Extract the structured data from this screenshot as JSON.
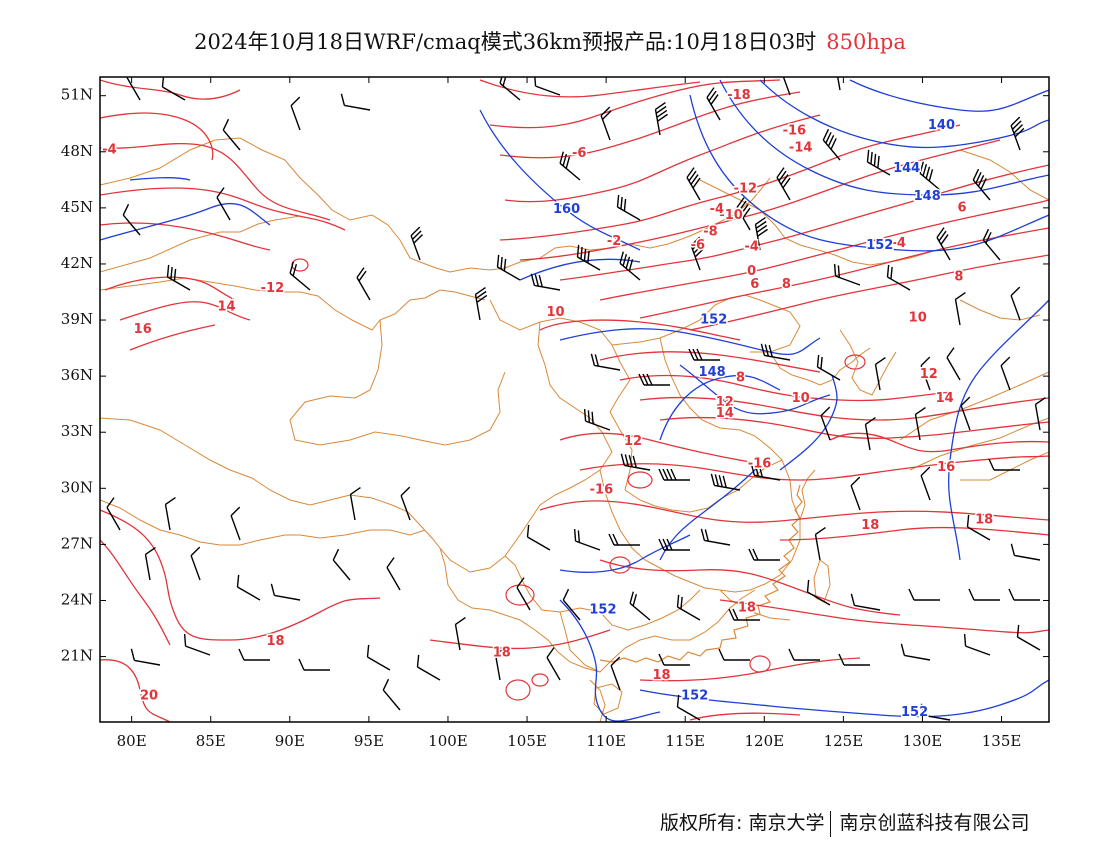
{
  "title": {
    "main": "2024年10月18日WRF/cmaq模式36km预报产品:10月18日03时",
    "level": "850hpa",
    "level_color": "#e2343a"
  },
  "map": {
    "lon_range": [
      78,
      138
    ],
    "lat_range": [
      17.5,
      52
    ],
    "lat_labels": [
      "21N",
      "24N",
      "27N",
      "30N",
      "33N",
      "36N",
      "39N",
      "42N",
      "45N",
      "48N",
      "51N"
    ],
    "lon_labels": [
      "80E",
      "85E",
      "90E",
      "95E",
      "100E",
      "105E",
      "110E",
      "115E",
      "120E",
      "125E",
      "130E",
      "135E"
    ],
    "colors": {
      "temperature": "#e2343a",
      "geopotential": "#1f3fd6",
      "boundary": "#d9893a",
      "wind": "#000000"
    },
    "temperature_labels": [
      {
        "text": "-4",
        "lon": 78.6,
        "lat": 48.1
      },
      {
        "text": "-6",
        "lon": 108.3,
        "lat": 47.9
      },
      {
        "text": "-18",
        "lon": 118.4,
        "lat": 51.0
      },
      {
        "text": "-16",
        "lon": 121.9,
        "lat": 49.1
      },
      {
        "text": "-14",
        "lon": 122.3,
        "lat": 48.2
      },
      {
        "text": "-12",
        "lon": 118.8,
        "lat": 46.0
      },
      {
        "text": "-10",
        "lon": 117.9,
        "lat": 44.6
      },
      {
        "text": "-8",
        "lon": 116.6,
        "lat": 43.7
      },
      {
        "text": "-6",
        "lon": 115.8,
        "lat": 43.0
      },
      {
        "text": "-4",
        "lon": 117.0,
        "lat": 44.9
      },
      {
        "text": "-2",
        "lon": 110.5,
        "lat": 43.2
      },
      {
        "text": "-4",
        "lon": 119.2,
        "lat": 42.9
      },
      {
        "text": "0",
        "lon": 119.2,
        "lat": 41.6
      },
      {
        "text": "-4",
        "lon": 128.5,
        "lat": 43.1
      },
      {
        "text": "6",
        "lon": 119.4,
        "lat": 40.9
      },
      {
        "text": "8",
        "lon": 121.4,
        "lat": 40.9
      },
      {
        "text": "6",
        "lon": 132.5,
        "lat": 45.0
      },
      {
        "text": "8",
        "lon": 132.3,
        "lat": 41.3
      },
      {
        "text": "10",
        "lon": 106.8,
        "lat": 39.4
      },
      {
        "text": "10",
        "lon": 129.7,
        "lat": 39.1
      },
      {
        "text": "-12",
        "lon": 88.9,
        "lat": 40.7
      },
      {
        "text": "14",
        "lon": 86.0,
        "lat": 39.7
      },
      {
        "text": "16",
        "lon": 80.7,
        "lat": 38.5
      },
      {
        "text": "8",
        "lon": 118.5,
        "lat": 35.9
      },
      {
        "text": "10",
        "lon": 122.3,
        "lat": 34.8
      },
      {
        "text": "12",
        "lon": 117.5,
        "lat": 34.6
      },
      {
        "text": "14",
        "lon": 117.5,
        "lat": 34.0
      },
      {
        "text": "12",
        "lon": 130.4,
        "lat": 36.1
      },
      {
        "text": "14",
        "lon": 131.4,
        "lat": 34.8
      },
      {
        "text": "12",
        "lon": 111.7,
        "lat": 32.5
      },
      {
        "text": "-16",
        "lon": 119.7,
        "lat": 31.3
      },
      {
        "text": "-16",
        "lon": 109.7,
        "lat": 29.9
      },
      {
        "text": "16",
        "lon": 131.5,
        "lat": 31.1
      },
      {
        "text": "18",
        "lon": 126.7,
        "lat": 28.0
      },
      {
        "text": "18",
        "lon": 133.9,
        "lat": 28.3
      },
      {
        "text": "18",
        "lon": 118.9,
        "lat": 23.6
      },
      {
        "text": "18",
        "lon": 89.1,
        "lat": 21.8
      },
      {
        "text": "18",
        "lon": 103.4,
        "lat": 21.2
      },
      {
        "text": "18",
        "lon": 113.5,
        "lat": 20.0
      },
      {
        "text": "20",
        "lon": 81.1,
        "lat": 18.9
      }
    ],
    "height_labels": [
      {
        "text": "140",
        "lon": 131.2,
        "lat": 49.4
      },
      {
        "text": "144",
        "lon": 129.0,
        "lat": 47.1
      },
      {
        "text": "148",
        "lon": 130.3,
        "lat": 45.6
      },
      {
        "text": "152",
        "lon": 127.3,
        "lat": 43.0
      },
      {
        "text": "160",
        "lon": 107.5,
        "lat": 44.9
      },
      {
        "text": "152",
        "lon": 116.8,
        "lat": 39.0
      },
      {
        "text": "148",
        "lon": 116.7,
        "lat": 36.2
      },
      {
        "text": "152",
        "lon": 109.8,
        "lat": 23.5
      },
      {
        "text": "152",
        "lon": 115.6,
        "lat": 18.9
      },
      {
        "text": "152",
        "lon": 129.5,
        "lat": 18.0
      }
    ]
  },
  "footer": {
    "copyright": "版权所有: 南京大学",
    "company": "南京创蓝科技有限公司"
  }
}
